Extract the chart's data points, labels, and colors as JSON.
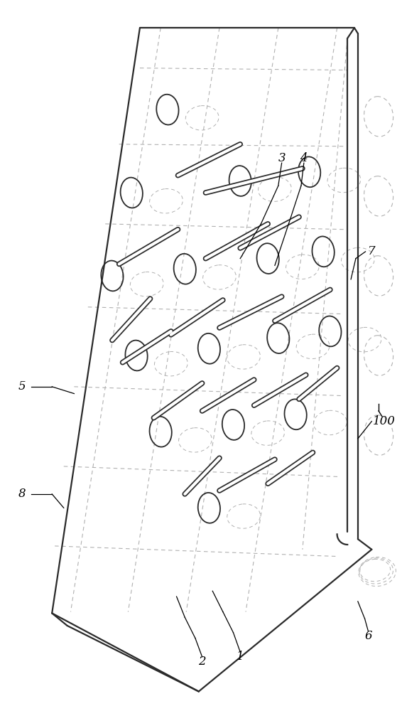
{
  "bg_color": "#ffffff",
  "line_color": "#2a2a2a",
  "dashed_color": "#b0b0b0",
  "label_fontsize": 12,
  "lw_main": 1.6,
  "lw_thin": 1.0,
  "slot_lw_outer": 5.5,
  "slot_lw_inner": 3.0
}
